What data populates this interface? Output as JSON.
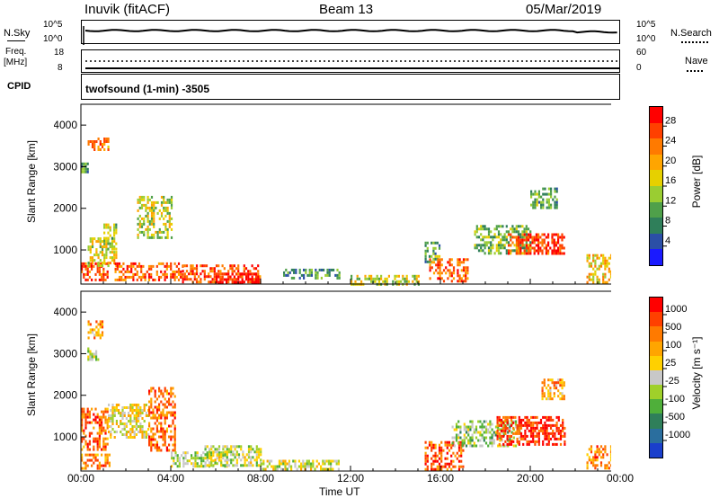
{
  "header": {
    "station": "Inuvik (fitACF)",
    "beam": "Beam 13",
    "date": "05/Mar/2019"
  },
  "top_panels": {
    "nsky_label": "N.Sky",
    "nsky_ticks": [
      "10^5",
      "10^0"
    ],
    "nsky_right_ticks": [
      "10^5",
      "10^0"
    ],
    "nsearch_label": "N.Search",
    "freq_label_1": "Freq.",
    "freq_label_2": "[MHz]",
    "freq_ticks": [
      "18",
      "8"
    ],
    "nave_ticks": [
      "60",
      "0"
    ],
    "nave_label": "Nave",
    "cpid_label": "CPID",
    "cpid_text": "twofsound (1-min) -3505"
  },
  "axes": {
    "ylabel": "Slant Range [km]",
    "xlabel": "Time UT",
    "xticks": [
      "00:00",
      "04:00",
      "08:00",
      "12:00",
      "16:00",
      "20:00",
      "00:00"
    ],
    "yticks": [
      "1000",
      "2000",
      "3000",
      "4000"
    ]
  },
  "colorbars": {
    "power": {
      "label": "Power [dB]",
      "ticks": [
        "28",
        "24",
        "20",
        "16",
        "12",
        "8",
        "4"
      ],
      "colors": [
        "#1a1aff",
        "#2b4fa6",
        "#2f7f5a",
        "#4fa04a",
        "#9acd32",
        "#e6d000",
        "#ffa500",
        "#ff7a00",
        "#ff4000",
        "#ff0000"
      ]
    },
    "velocity": {
      "label": "Velocity [m s⁻¹]",
      "ticks": [
        "1000",
        "500",
        "100",
        "25",
        "-25",
        "-100",
        "-500",
        "-1000"
      ],
      "colors": [
        "#1a3fcc",
        "#2a6e9e",
        "#2f7f5a",
        "#4faf3a",
        "#9fd02a",
        "#c8c8c8",
        "#ffd000",
        "#ffa500",
        "#ff7a00",
        "#ff4000",
        "#ff0000"
      ]
    }
  },
  "chart_data": {
    "type": "heatmap",
    "x_range_hours": [
      0,
      24
    ],
    "y_range_km": [
      180,
      4500
    ],
    "grid": false,
    "power_patches": [
      {
        "t0": 0.0,
        "t1": 1.2,
        "r0": 250,
        "r1": 700,
        "level": 0.85
      },
      {
        "t0": 0.3,
        "t1": 1.6,
        "r0": 600,
        "r1": 1300,
        "level": 0.55
      },
      {
        "t0": 1.0,
        "t1": 1.6,
        "r0": 1000,
        "r1": 1700,
        "level": 0.45
      },
      {
        "t0": 0.0,
        "t1": 0.3,
        "r0": 2850,
        "r1": 3100,
        "level": 0.35
      },
      {
        "t0": 0.3,
        "t1": 1.2,
        "r0": 3400,
        "r1": 3700,
        "level": 0.75
      },
      {
        "t0": 2.5,
        "t1": 4.0,
        "r0": 1300,
        "r1": 2300,
        "level": 0.5
      },
      {
        "t0": 1.5,
        "t1": 4.5,
        "r0": 250,
        "r1": 700,
        "level": 0.8
      },
      {
        "t0": 4.5,
        "t1": 8.0,
        "r0": 250,
        "r1": 650,
        "level": 0.85
      },
      {
        "t0": 6.0,
        "t1": 8.0,
        "r0": 250,
        "r1": 450,
        "level": 0.95
      },
      {
        "t0": 9.0,
        "t1": 11.5,
        "r0": 300,
        "r1": 550,
        "level": 0.3
      },
      {
        "t0": 12.0,
        "t1": 15.0,
        "r0": 200,
        "r1": 400,
        "level": 0.5
      },
      {
        "t0": 15.3,
        "t1": 16.0,
        "r0": 700,
        "r1": 1200,
        "level": 0.35
      },
      {
        "t0": 15.5,
        "t1": 17.2,
        "r0": 250,
        "r1": 800,
        "level": 0.8
      },
      {
        "t0": 17.5,
        "t1": 20.0,
        "r0": 900,
        "r1": 1600,
        "level": 0.4
      },
      {
        "t0": 19.0,
        "t1": 21.5,
        "r0": 900,
        "r1": 1400,
        "level": 0.85
      },
      {
        "t0": 20.0,
        "t1": 21.2,
        "r0": 2000,
        "r1": 2500,
        "level": 0.35
      },
      {
        "t0": 22.5,
        "t1": 24.0,
        "r0": 250,
        "r1": 900,
        "level": 0.6
      }
    ],
    "velocity_patches": [
      {
        "t0": 0.0,
        "t1": 1.2,
        "r0": 700,
        "r1": 1700,
        "level": 0.8
      },
      {
        "t0": 0.0,
        "t1": 1.3,
        "r0": 250,
        "r1": 600,
        "level": 0.75
      },
      {
        "t0": 0.2,
        "t1": 0.8,
        "r0": 2850,
        "r1": 3150,
        "level": 0.45
      },
      {
        "t0": 0.3,
        "t1": 1.0,
        "r0": 3400,
        "r1": 3800,
        "level": 0.7
      },
      {
        "t0": 1.2,
        "t1": 3.0,
        "r0": 1000,
        "r1": 1800,
        "level": 0.55
      },
      {
        "t0": 3.0,
        "t1": 4.2,
        "r0": 700,
        "r1": 2200,
        "level": 0.8
      },
      {
        "t0": 4.0,
        "t1": 6.5,
        "r0": 300,
        "r1": 650,
        "level": 0.45
      },
      {
        "t0": 5.5,
        "t1": 8.0,
        "r0": 300,
        "r1": 800,
        "level": 0.47
      },
      {
        "t0": 8.0,
        "t1": 11.5,
        "r0": 200,
        "r1": 450,
        "level": 0.5
      },
      {
        "t0": 15.3,
        "t1": 17.0,
        "r0": 250,
        "r1": 900,
        "level": 0.85
      },
      {
        "t0": 16.5,
        "t1": 19.5,
        "r0": 800,
        "r1": 1400,
        "level": 0.42
      },
      {
        "t0": 18.5,
        "t1": 21.5,
        "r0": 800,
        "r1": 1500,
        "level": 0.9
      },
      {
        "t0": 20.5,
        "t1": 21.5,
        "r0": 1900,
        "r1": 2400,
        "level": 0.7
      },
      {
        "t0": 22.5,
        "t1": 24.0,
        "r0": 250,
        "r1": 800,
        "level": 0.75
      }
    ]
  }
}
